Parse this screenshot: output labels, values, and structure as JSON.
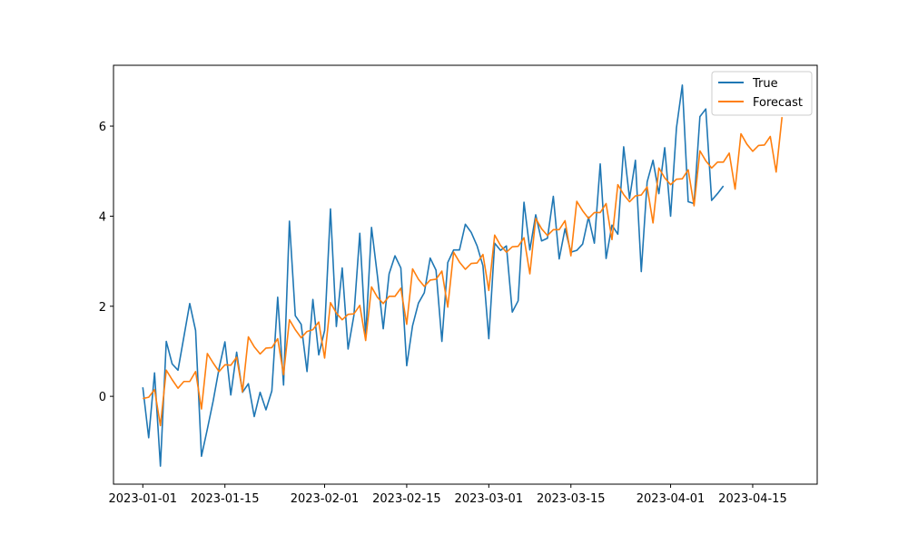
{
  "chart_data": {
    "type": "line",
    "title": "",
    "xlabel": "",
    "ylabel": "",
    "x_type": "date",
    "xlim": [
      "2022-12-27",
      "2023-04-26"
    ],
    "ylim": [
      -1.95,
      7.35
    ],
    "grid": false,
    "legend": {
      "placement": "top-right",
      "entries": [
        "True",
        "Forecast"
      ]
    },
    "xticks": [
      "2023-01-01",
      "2023-01-15",
      "2023-02-01",
      "2023-02-15",
      "2023-03-01",
      "2023-03-15",
      "2023-04-01",
      "2023-04-15"
    ],
    "yticks": [
      0,
      2,
      4,
      6
    ],
    "series": [
      {
        "name": "True",
        "color": "#1f77b4",
        "start": "2023-01-01",
        "values": [
          0.2,
          -0.92,
          0.52,
          -1.55,
          1.22,
          0.72,
          0.58,
          1.32,
          2.06,
          1.46,
          -1.33,
          -0.73,
          -0.1,
          0.62,
          1.21,
          0.03,
          0.98,
          0.09,
          0.28,
          -0.45,
          0.09,
          -0.3,
          0.12,
          2.2,
          0.25,
          3.89,
          1.79,
          1.6,
          0.55,
          2.15,
          0.92,
          1.46,
          4.16,
          1.55,
          2.85,
          1.05,
          1.8,
          3.62,
          1.32,
          3.75,
          2.68,
          1.5,
          2.72,
          3.12,
          2.85,
          0.68,
          1.57,
          2.07,
          2.3,
          3.07,
          2.8,
          1.22,
          2.97,
          3.25,
          3.25,
          3.82,
          3.64,
          3.34,
          2.9,
          1.28,
          3.4,
          3.24,
          3.34,
          1.87,
          2.12,
          4.31,
          3.25,
          4.03,
          3.45,
          3.51,
          4.44,
          3.05,
          3.72,
          3.2,
          3.24,
          3.38,
          3.98,
          3.4,
          5.16,
          3.06,
          3.8,
          3.6,
          5.54,
          4.39,
          5.24,
          2.77,
          4.76,
          5.24,
          4.5,
          5.52,
          4.0,
          5.96,
          6.91,
          4.32,
          4.28,
          6.21,
          6.38,
          4.35,
          4.5,
          4.67
        ]
      },
      {
        "name": "Forecast",
        "color": "#ff7f0e",
        "start": "2023-01-01",
        "values": [
          -0.05,
          -0.02,
          0.15,
          -0.65,
          0.58,
          0.37,
          0.18,
          0.33,
          0.33,
          0.55,
          -0.28,
          0.95,
          0.74,
          0.55,
          0.7,
          0.69,
          0.87,
          0.1,
          1.32,
          1.1,
          0.94,
          1.07,
          1.08,
          1.28,
          0.48,
          1.7,
          1.48,
          1.3,
          1.44,
          1.48,
          1.65,
          0.85,
          2.08,
          1.85,
          1.7,
          1.82,
          1.83,
          2.02,
          1.24,
          2.43,
          2.2,
          2.06,
          2.22,
          2.22,
          2.4,
          1.6,
          2.83,
          2.6,
          2.44,
          2.58,
          2.6,
          2.78,
          1.98,
          3.2,
          2.98,
          2.82,
          2.95,
          2.96,
          3.15,
          2.35,
          3.58,
          3.35,
          3.2,
          3.32,
          3.33,
          3.52,
          2.72,
          3.95,
          3.72,
          3.57,
          3.7,
          3.7,
          3.9,
          3.12,
          4.33,
          4.12,
          3.95,
          4.08,
          4.08,
          4.28,
          3.48,
          4.7,
          4.48,
          4.32,
          4.45,
          4.47,
          4.65,
          3.85,
          5.07,
          4.85,
          4.7,
          4.82,
          4.83,
          5.03,
          4.23,
          5.45,
          5.23,
          5.07,
          5.2,
          5.2,
          5.4,
          4.6,
          5.83,
          5.6,
          5.44,
          5.57,
          5.58,
          5.77,
          4.98,
          6.2
        ]
      }
    ]
  }
}
